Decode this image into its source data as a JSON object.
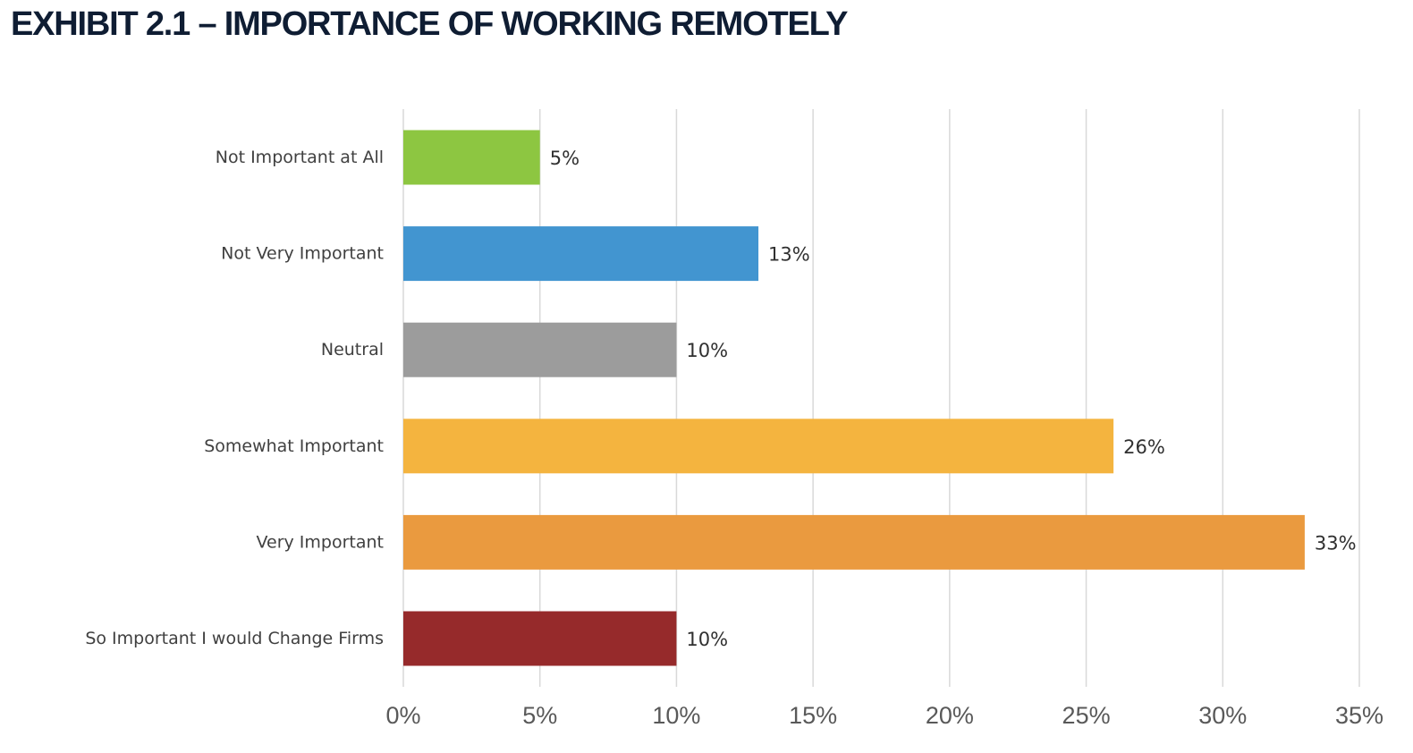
{
  "title": "EXHIBIT 2.1 – IMPORTANCE OF WORKING REMOTELY",
  "chart_data": {
    "type": "bar",
    "orientation": "horizontal",
    "title": "EXHIBIT 2.1 – IMPORTANCE OF WORKING REMOTELY",
    "xlabel": "",
    "ylabel": "",
    "categories": [
      "Not Important at All",
      "Not Very Important",
      "Neutral",
      "Somewhat Important",
      "Very Important",
      "So Important I would Change Firms"
    ],
    "values": [
      5,
      13,
      10,
      26,
      33,
      10
    ],
    "data_labels": [
      "5%",
      "13%",
      "10%",
      "26%",
      "33%",
      "10%"
    ],
    "colors": [
      "#8dc641",
      "#4295d0",
      "#9c9c9c",
      "#f4b43f",
      "#ea9a3f",
      "#962a2b"
    ],
    "xlim": [
      0,
      35
    ],
    "ticks": [
      0,
      5,
      10,
      15,
      20,
      25,
      30,
      35
    ],
    "tick_labels": [
      "0%",
      "5%",
      "10%",
      "15%",
      "20%",
      "25%",
      "30%",
      "35%"
    ],
    "grid": true,
    "legend": "none"
  }
}
